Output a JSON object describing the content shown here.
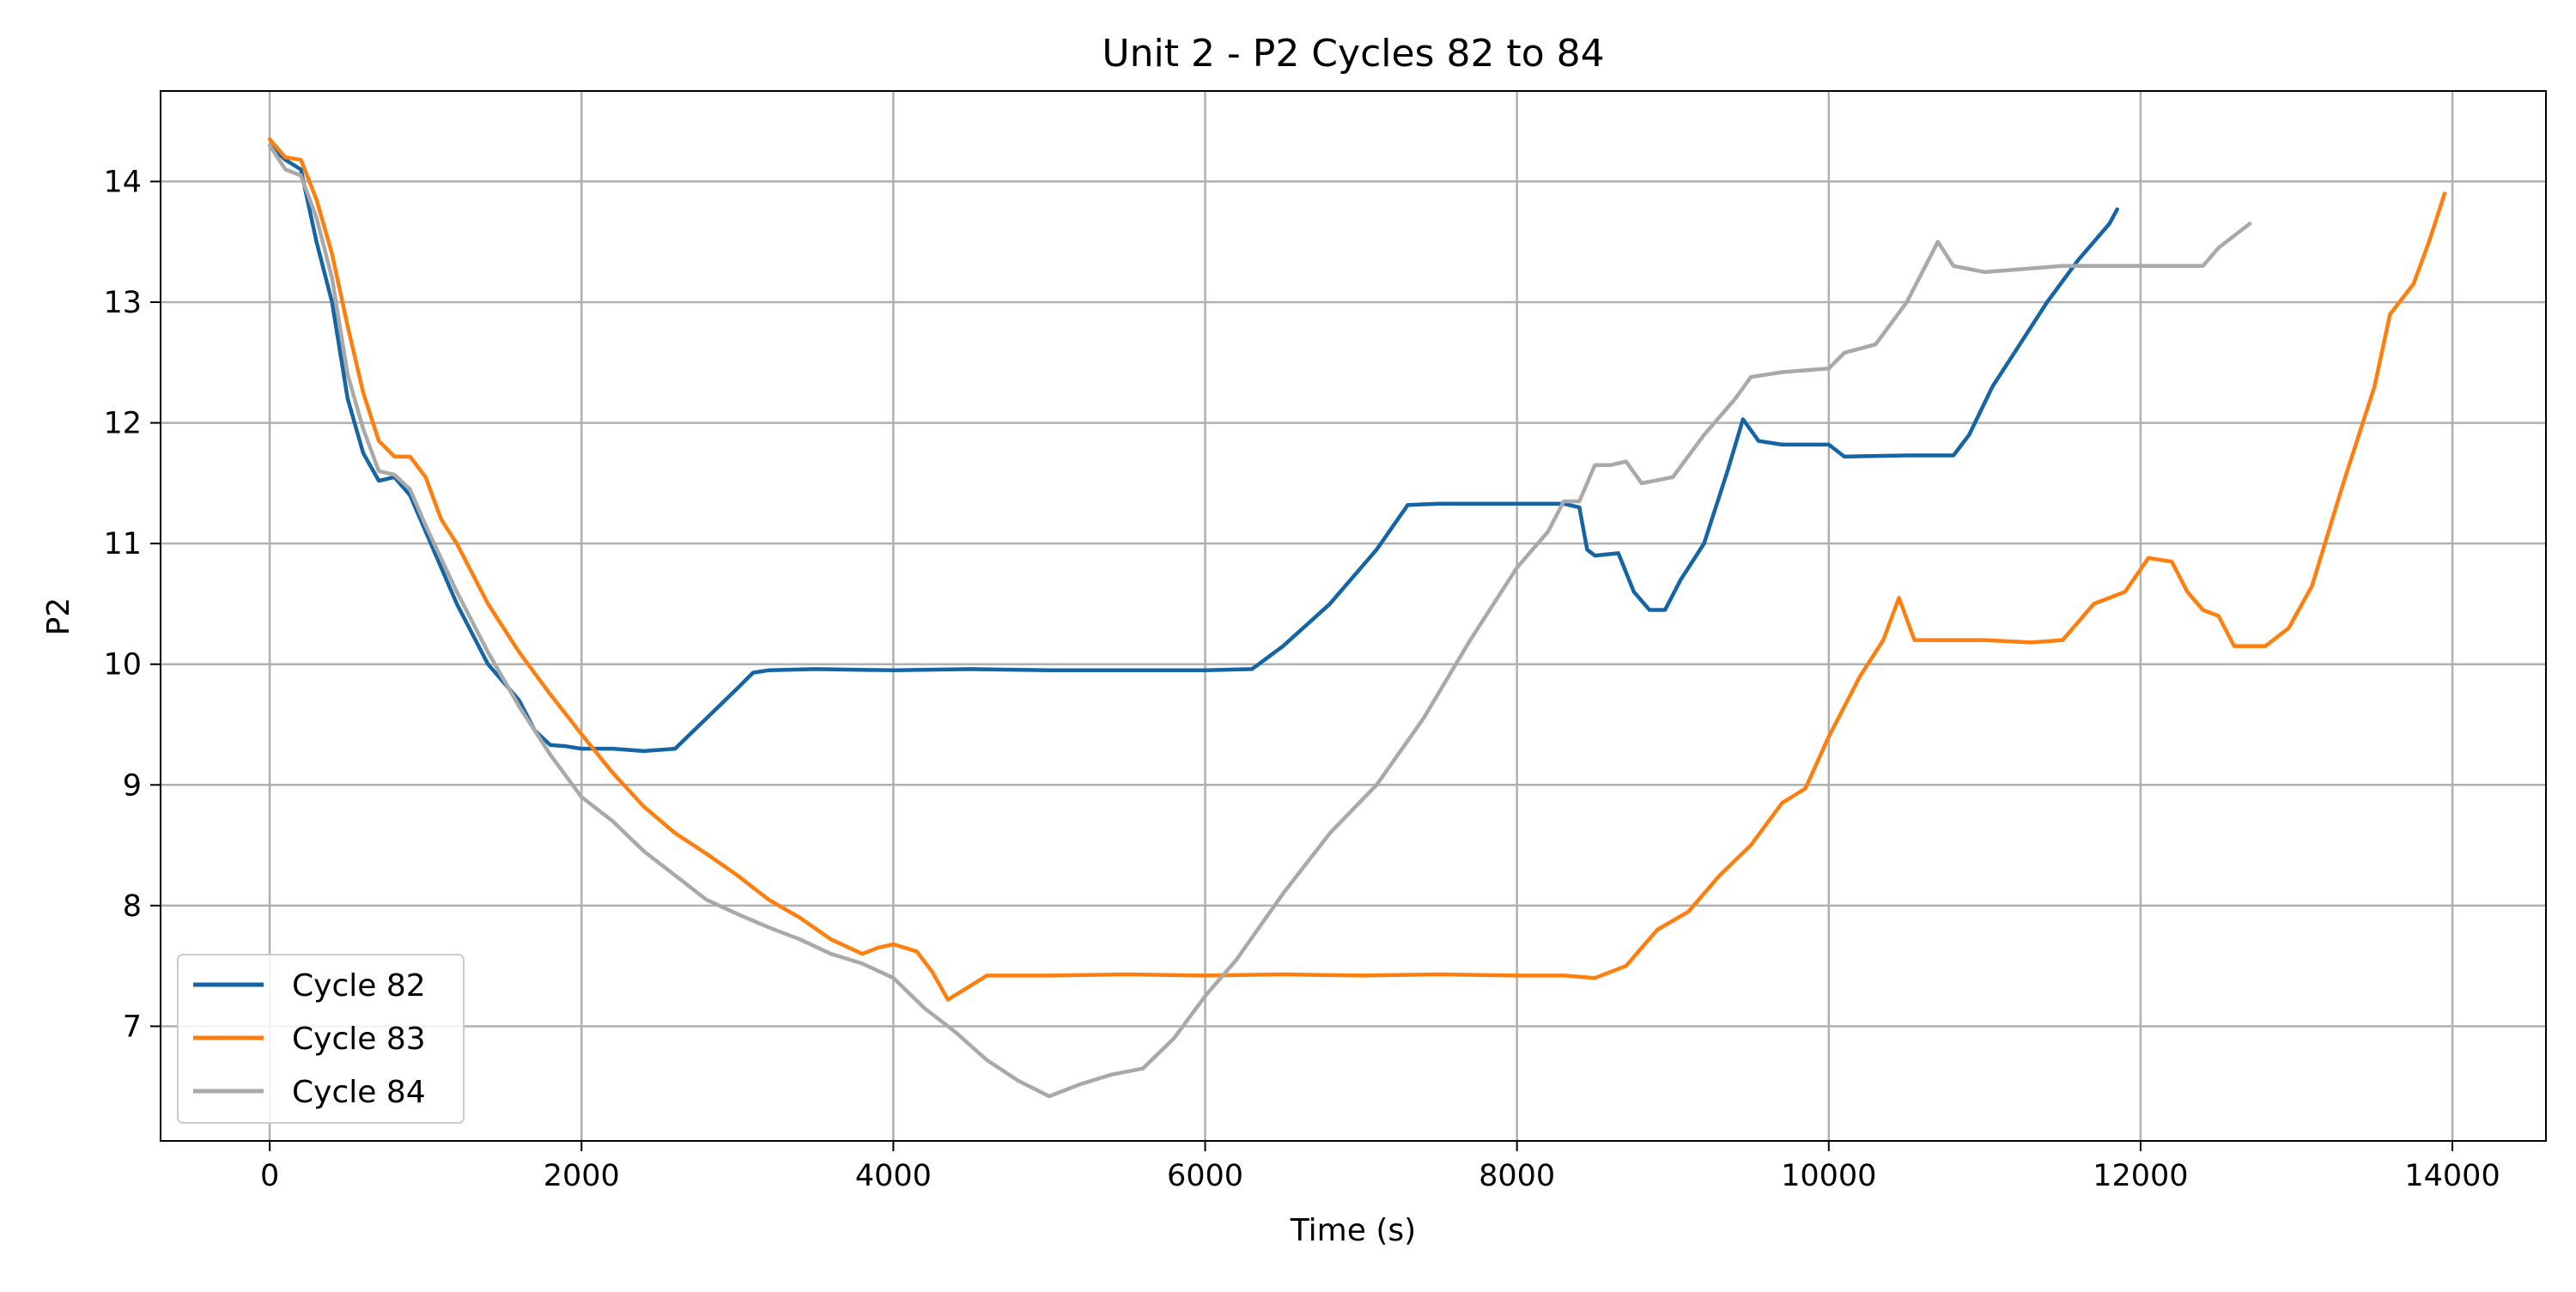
{
  "chart_data": {
    "type": "line",
    "title": "Unit 2 - P2 Cycles 82 to 84",
    "xlabel": "Time (s)",
    "ylabel": "P2",
    "xlim": [
      -700,
      14600
    ],
    "ylim": [
      6.05,
      14.75
    ],
    "xticks": [
      0,
      2000,
      4000,
      6000,
      8000,
      10000,
      12000,
      14000
    ],
    "yticks": [
      7,
      8,
      9,
      10,
      11,
      12,
      13,
      14
    ],
    "grid": true,
    "legend": "lower-left",
    "series": [
      {
        "name": "Cycle 82",
        "color": "#1565a5",
        "points": [
          [
            0,
            14.3
          ],
          [
            100,
            14.18
          ],
          [
            200,
            14.1
          ],
          [
            300,
            13.5
          ],
          [
            400,
            13.0
          ],
          [
            500,
            12.2
          ],
          [
            600,
            11.75
          ],
          [
            700,
            11.52
          ],
          [
            800,
            11.55
          ],
          [
            900,
            11.4
          ],
          [
            1000,
            11.1
          ],
          [
            1200,
            10.5
          ],
          [
            1400,
            10.0
          ],
          [
            1500,
            9.85
          ],
          [
            1600,
            9.7
          ],
          [
            1700,
            9.45
          ],
          [
            1800,
            9.33
          ],
          [
            1900,
            9.32
          ],
          [
            2000,
            9.3
          ],
          [
            2200,
            9.3
          ],
          [
            2400,
            9.28
          ],
          [
            2600,
            9.3
          ],
          [
            2800,
            9.55
          ],
          [
            3000,
            9.8
          ],
          [
            3100,
            9.93
          ],
          [
            3200,
            9.95
          ],
          [
            3500,
            9.96
          ],
          [
            4000,
            9.95
          ],
          [
            4500,
            9.96
          ],
          [
            5000,
            9.95
          ],
          [
            5500,
            9.95
          ],
          [
            6000,
            9.95
          ],
          [
            6300,
            9.96
          ],
          [
            6500,
            10.15
          ],
          [
            6800,
            10.5
          ],
          [
            7100,
            10.95
          ],
          [
            7300,
            11.32
          ],
          [
            7500,
            11.33
          ],
          [
            8000,
            11.33
          ],
          [
            8300,
            11.33
          ],
          [
            8400,
            11.3
          ],
          [
            8450,
            10.95
          ],
          [
            8500,
            10.9
          ],
          [
            8650,
            10.92
          ],
          [
            8750,
            10.6
          ],
          [
            8850,
            10.45
          ],
          [
            8950,
            10.45
          ],
          [
            9050,
            10.7
          ],
          [
            9200,
            11.0
          ],
          [
            9350,
            11.6
          ],
          [
            9450,
            12.03
          ],
          [
            9550,
            11.85
          ],
          [
            9700,
            11.82
          ],
          [
            10000,
            11.82
          ],
          [
            10100,
            11.72
          ],
          [
            10500,
            11.73
          ],
          [
            10800,
            11.73
          ],
          [
            10900,
            11.9
          ],
          [
            11050,
            12.3
          ],
          [
            11200,
            12.6
          ],
          [
            11400,
            13.0
          ],
          [
            11600,
            13.35
          ],
          [
            11800,
            13.65
          ],
          [
            11850,
            13.77
          ]
        ]
      },
      {
        "name": "Cycle 83",
        "color": "#ff7f0e",
        "points": [
          [
            0,
            14.35
          ],
          [
            100,
            14.2
          ],
          [
            200,
            14.18
          ],
          [
            300,
            13.85
          ],
          [
            400,
            13.4
          ],
          [
            500,
            12.8
          ],
          [
            600,
            12.25
          ],
          [
            700,
            11.85
          ],
          [
            800,
            11.72
          ],
          [
            900,
            11.72
          ],
          [
            1000,
            11.55
          ],
          [
            1100,
            11.2
          ],
          [
            1200,
            11.0
          ],
          [
            1400,
            10.5
          ],
          [
            1600,
            10.1
          ],
          [
            1800,
            9.75
          ],
          [
            2000,
            9.42
          ],
          [
            2200,
            9.1
          ],
          [
            2400,
            8.82
          ],
          [
            2600,
            8.6
          ],
          [
            2800,
            8.43
          ],
          [
            3000,
            8.25
          ],
          [
            3200,
            8.05
          ],
          [
            3400,
            7.9
          ],
          [
            3600,
            7.72
          ],
          [
            3800,
            7.6
          ],
          [
            3900,
            7.65
          ],
          [
            4000,
            7.68
          ],
          [
            4150,
            7.62
          ],
          [
            4250,
            7.45
          ],
          [
            4350,
            7.22
          ],
          [
            4450,
            7.3
          ],
          [
            4600,
            7.42
          ],
          [
            5000,
            7.42
          ],
          [
            5500,
            7.43
          ],
          [
            6000,
            7.42
          ],
          [
            6500,
            7.43
          ],
          [
            7000,
            7.42
          ],
          [
            7500,
            7.43
          ],
          [
            8000,
            7.42
          ],
          [
            8300,
            7.42
          ],
          [
            8500,
            7.4
          ],
          [
            8700,
            7.5
          ],
          [
            8900,
            7.8
          ],
          [
            9100,
            7.95
          ],
          [
            9300,
            8.25
          ],
          [
            9500,
            8.5
          ],
          [
            9700,
            8.85
          ],
          [
            9850,
            8.97
          ],
          [
            10000,
            9.4
          ],
          [
            10200,
            9.9
          ],
          [
            10350,
            10.2
          ],
          [
            10450,
            10.55
          ],
          [
            10550,
            10.2
          ],
          [
            10800,
            10.2
          ],
          [
            11000,
            10.2
          ],
          [
            11300,
            10.18
          ],
          [
            11500,
            10.2
          ],
          [
            11700,
            10.5
          ],
          [
            11900,
            10.6
          ],
          [
            12050,
            10.88
          ],
          [
            12200,
            10.85
          ],
          [
            12300,
            10.6
          ],
          [
            12400,
            10.45
          ],
          [
            12500,
            10.4
          ],
          [
            12600,
            10.15
          ],
          [
            12800,
            10.15
          ],
          [
            12950,
            10.3
          ],
          [
            13100,
            10.65
          ],
          [
            13300,
            11.5
          ],
          [
            13500,
            12.3
          ],
          [
            13600,
            12.9
          ],
          [
            13750,
            13.15
          ],
          [
            13850,
            13.5
          ],
          [
            13950,
            13.9
          ]
        ]
      },
      {
        "name": "Cycle 84",
        "color": "#a9a9a9",
        "points": [
          [
            0,
            14.3
          ],
          [
            100,
            14.1
          ],
          [
            200,
            14.05
          ],
          [
            300,
            13.7
          ],
          [
            400,
            13.2
          ],
          [
            500,
            12.4
          ],
          [
            600,
            11.95
          ],
          [
            700,
            11.6
          ],
          [
            800,
            11.57
          ],
          [
            900,
            11.45
          ],
          [
            1000,
            11.15
          ],
          [
            1200,
            10.6
          ],
          [
            1400,
            10.1
          ],
          [
            1600,
            9.65
          ],
          [
            1800,
            9.25
          ],
          [
            2000,
            8.9
          ],
          [
            2200,
            8.7
          ],
          [
            2400,
            8.45
          ],
          [
            2600,
            8.25
          ],
          [
            2800,
            8.05
          ],
          [
            3000,
            7.93
          ],
          [
            3200,
            7.82
          ],
          [
            3400,
            7.72
          ],
          [
            3600,
            7.6
          ],
          [
            3800,
            7.52
          ],
          [
            4000,
            7.4
          ],
          [
            4200,
            7.15
          ],
          [
            4400,
            6.95
          ],
          [
            4600,
            6.72
          ],
          [
            4800,
            6.55
          ],
          [
            5000,
            6.42
          ],
          [
            5200,
            6.52
          ],
          [
            5400,
            6.6
          ],
          [
            5600,
            6.65
          ],
          [
            5800,
            6.9
          ],
          [
            6000,
            7.25
          ],
          [
            6200,
            7.55
          ],
          [
            6500,
            8.1
          ],
          [
            6800,
            8.6
          ],
          [
            7100,
            9.0
          ],
          [
            7400,
            9.55
          ],
          [
            7700,
            10.2
          ],
          [
            8000,
            10.8
          ],
          [
            8200,
            11.1
          ],
          [
            8300,
            11.35
          ],
          [
            8400,
            11.35
          ],
          [
            8500,
            11.65
          ],
          [
            8600,
            11.65
          ],
          [
            8700,
            11.68
          ],
          [
            8800,
            11.5
          ],
          [
            9000,
            11.55
          ],
          [
            9200,
            11.9
          ],
          [
            9400,
            12.2
          ],
          [
            9500,
            12.38
          ],
          [
            9700,
            12.42
          ],
          [
            10000,
            12.45
          ],
          [
            10100,
            12.58
          ],
          [
            10300,
            12.65
          ],
          [
            10500,
            13.0
          ],
          [
            10700,
            13.5
          ],
          [
            10800,
            13.3
          ],
          [
            11000,
            13.25
          ],
          [
            11500,
            13.3
          ],
          [
            12000,
            13.3
          ],
          [
            12400,
            13.3
          ],
          [
            12500,
            13.45
          ],
          [
            12700,
            13.65
          ]
        ]
      }
    ]
  }
}
